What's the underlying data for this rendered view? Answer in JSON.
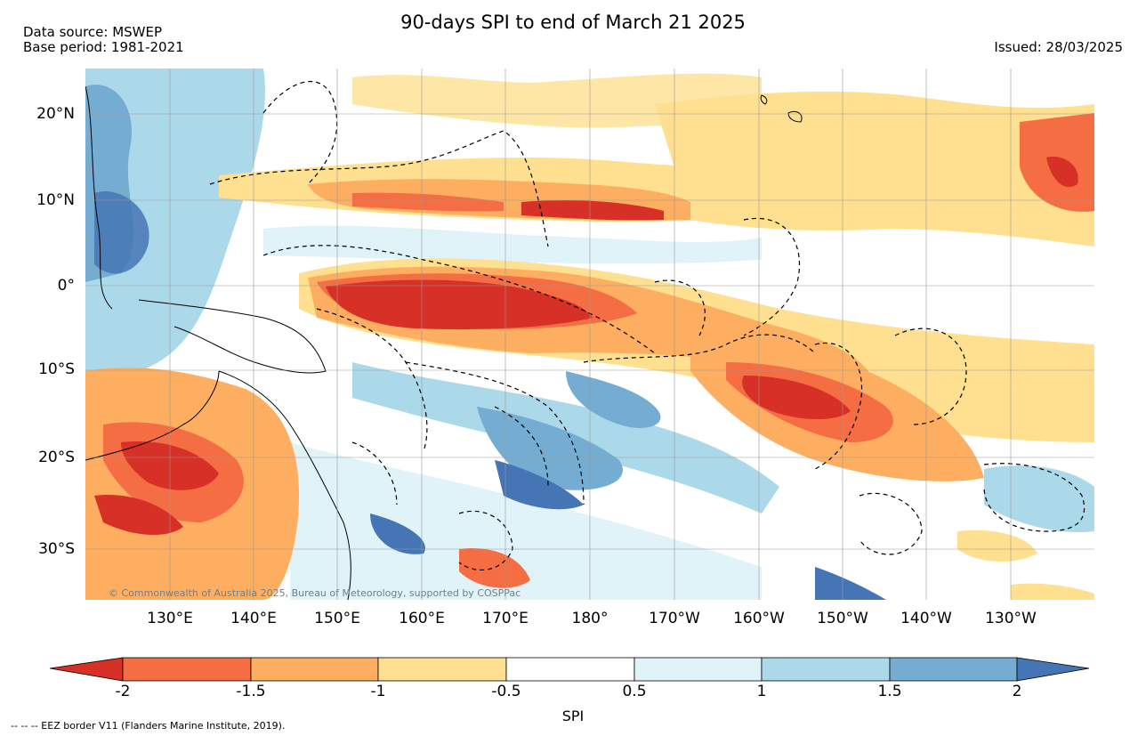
{
  "header": {
    "title": "90-days SPI to end of March 21 2025",
    "source_line1": "Data source: MSWEP",
    "source_line2": "Base period: 1981-2021",
    "issued": "Issued: 28/03/2025"
  },
  "map": {
    "lat_labels": [
      "20°N",
      "10°N",
      "0°",
      "10°S",
      "20°S",
      "30°S"
    ],
    "lon_labels": [
      "130°E",
      "140°E",
      "150°E",
      "160°E",
      "170°E",
      "180°",
      "170°W",
      "160°W",
      "150°W",
      "140°W",
      "130°W"
    ],
    "copyright": "© Commonwealth of Australia 2025, Bureau of Meteorology, supported by COSPPac",
    "colors": {
      "ocean_bg": "#ffffff",
      "extreme_dry": "#d73027",
      "severe_dry": "#f46d43",
      "moderate_dry": "#fdae61",
      "mild_dry": "#fee090",
      "near_normal": "#ffffff",
      "mild_wet": "#e0f3f8",
      "moderate_wet": "#abd9e9",
      "severe_wet": "#74add1",
      "extreme_wet": "#4575b4"
    }
  },
  "colorbar": {
    "label": "SPI",
    "ticks": [
      "-2",
      "-1.5",
      "-1",
      "-0.5",
      "0.5",
      "1",
      "1.5",
      "2"
    ],
    "segment_colors": [
      "#f46d43",
      "#fdae61",
      "#fee090",
      "#ffffff",
      "#e0f3f8",
      "#abd9e9",
      "#74add1"
    ],
    "low_extend_color": "#d73027",
    "high_extend_color": "#4575b4"
  },
  "footnote": "--  --  -- EEZ border V11 (Flanders Marine Institute, 2019)."
}
